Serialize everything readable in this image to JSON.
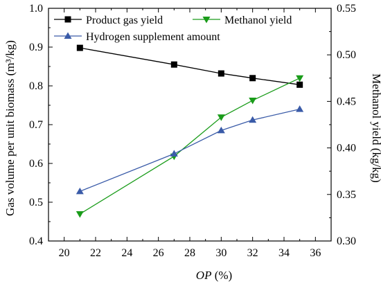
{
  "chart_data": {
    "type": "line",
    "xlabel_italic": "OP",
    "xlabel_unit": " (%)",
    "ylabel": "Gas volume per unit biomass (m³/kg)",
    "y2label": "Methanol yield (kg/kg)",
    "xlim": [
      19,
      37
    ],
    "ylim": [
      0.4,
      1.0
    ],
    "y2lim": [
      0.3,
      0.55
    ],
    "xticks": [
      "20",
      "22",
      "24",
      "26",
      "28",
      "30",
      "32",
      "34",
      "36"
    ],
    "yticks": [
      "0.4",
      "0.5",
      "0.6",
      "0.7",
      "0.8",
      "0.9",
      "1.0"
    ],
    "y2ticks": [
      "0.30",
      "0.35",
      "0.40",
      "0.45",
      "0.50",
      "0.55"
    ],
    "x": [
      21,
      27,
      30,
      32,
      35
    ],
    "series": [
      {
        "name": "Product gas yield",
        "axis": "left",
        "marker": "square",
        "color": "#000000",
        "values": [
          0.898,
          0.855,
          0.832,
          0.82,
          0.803
        ]
      },
      {
        "name": "Methanol yield",
        "axis": "right",
        "marker": "triangle-down",
        "color": "#1a9c1a",
        "values": [
          0.329,
          0.391,
          0.433,
          0.451,
          0.475
        ]
      },
      {
        "name": "Hydrogen supplement amount",
        "axis": "left",
        "marker": "triangle-up",
        "color": "#3a5ba8",
        "values": [
          0.528,
          0.625,
          0.685,
          0.712,
          0.74
        ]
      }
    ],
    "legend": "top"
  }
}
